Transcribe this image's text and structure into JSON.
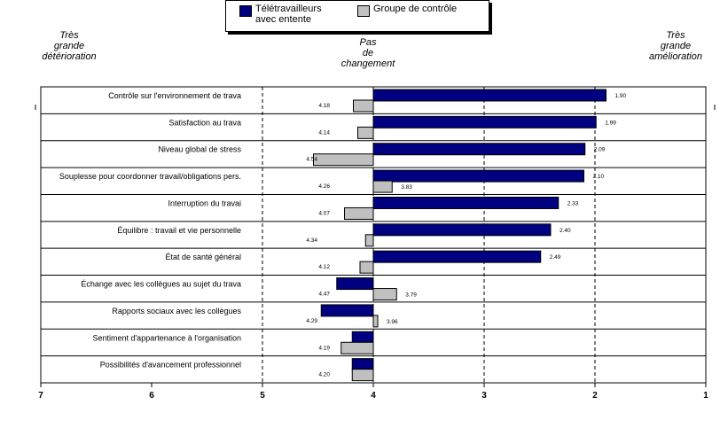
{
  "legend": {
    "teletravail": "Télétravailleurs\navec entente",
    "controle": "Groupe de contrôle"
  },
  "zones": {
    "left": "Très\ngrande\ndétérioration",
    "middle": "Pas\nde\nchangement",
    "right": "Très\ngrande\namélioration"
  },
  "colors": {
    "teletravail": "#000080",
    "controle": "#c0c0c0"
  },
  "chart_data": {
    "type": "bar",
    "orientation": "horizontal",
    "xlim": [
      7,
      1
    ],
    "x_reversed": true,
    "baseline": 4,
    "ticks": [
      "7",
      "6",
      "5",
      "4",
      "3",
      "2",
      "1"
    ],
    "grid": "vertical dashed at 5, 4, 3, 2",
    "categories": [
      "Contrôle sur l'environnement de trava",
      "Satisfaction au trava",
      "Niveau global de stress",
      "Souplesse pour coordonner travail/obligations pers.",
      "Interruption du travai",
      "Équilibre : travail et vie personnelle",
      "État de santé général",
      "Échange avec les collègues au sujet du trava",
      "Rapports sociaux avec les collègues",
      "Sentiment d'appartenance à l'organisation",
      "Possibilités d'avancement professionnel"
    ],
    "series": [
      {
        "name": "Télétravailleurs avec entente",
        "values": [
          1.9,
          1.99,
          2.09,
          2.1,
          2.33,
          2.4,
          2.49,
          4.33,
          4.47,
          4.19,
          4.19
        ],
        "labels": [
          "1.90",
          "1.99",
          "2.09",
          "2.10",
          "2.33",
          "2.40",
          "2.49",
          "",
          "",
          "",
          ""
        ]
      },
      {
        "name": "Groupe de contrôle",
        "values": [
          4.18,
          4.14,
          4.54,
          3.83,
          4.26,
          4.07,
          4.12,
          3.79,
          3.96,
          4.29,
          4.19
        ],
        "labels": [
          "4.18",
          "4.14",
          "4.54",
          "3.83",
          "4.26",
          "4.07",
          "4.12",
          "3.79",
          "3.96",
          "4.29",
          "4.19"
        ]
      }
    ],
    "value_annotations": [
      "4.18",
      "4.14",
      "4.54",
      "4.26",
      "4.07",
      "4.34",
      "4.12",
      "4.47",
      "4.29",
      "4.19",
      "4.20"
    ]
  }
}
